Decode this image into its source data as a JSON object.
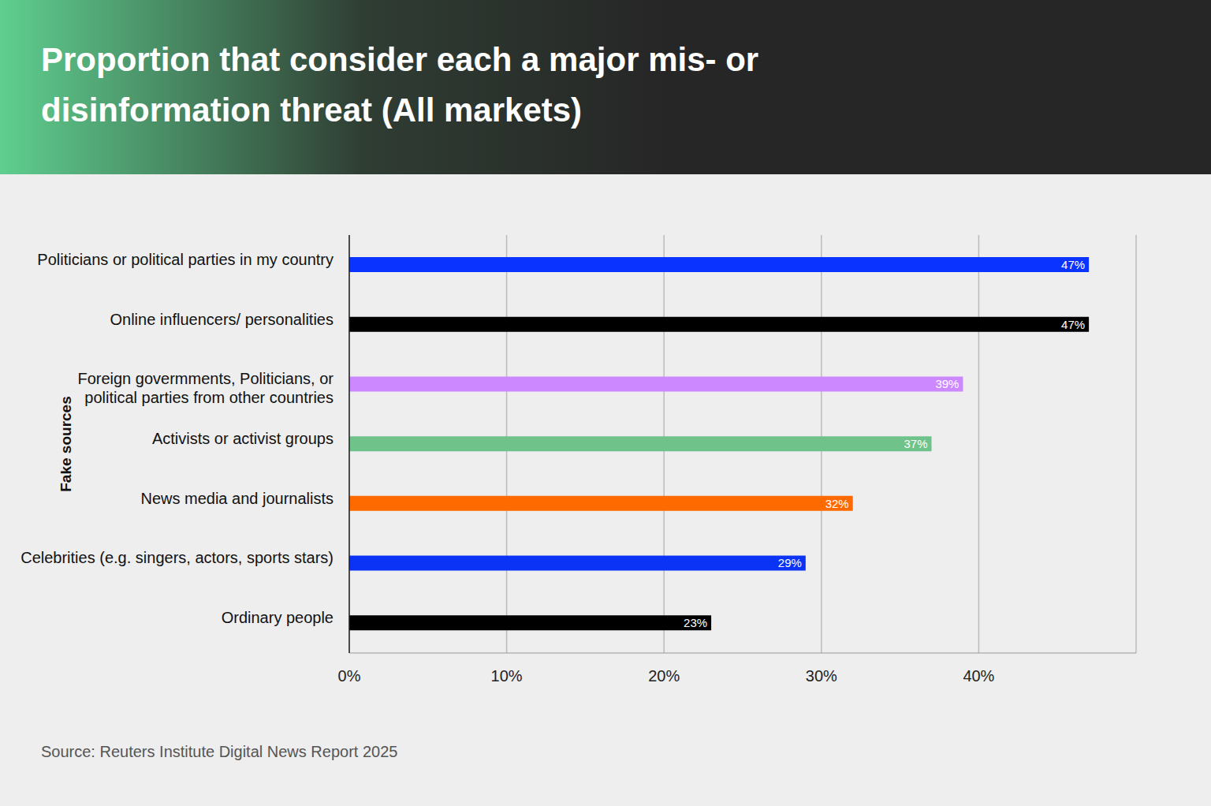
{
  "chart_data": {
    "type": "bar",
    "orientation": "horizontal",
    "title": "Proportion that consider each a major mis- or disinformation threat (All markets)",
    "y_label": "Fake sources",
    "source": "Source: Reuters Institute Digital News Report 2025",
    "categories": [
      "Politicians or political parties in my country",
      "Online influencers/ personalities",
      "Foreign govermments, Politicians, or political parties from other countries",
      "Activists or activist groups",
      "News media and journalists",
      "Celebrities (e.g. singers, actors, sports stars)",
      "Ordinary people"
    ],
    "values": [
      47,
      47,
      39,
      37,
      32,
      29,
      23
    ],
    "value_labels": [
      "47%",
      "47%",
      "39%",
      "37%",
      "32%",
      "29%",
      "23%"
    ],
    "colors": [
      "#0a33ff",
      "#000000",
      "#cc88ff",
      "#6fc38a",
      "#ff6a00",
      "#0a33f5",
      "#000000"
    ],
    "xlim": [
      0,
      50
    ],
    "xticks": [
      {
        "value": 0,
        "label": "0%"
      },
      {
        "value": 10,
        "label": "10%"
      },
      {
        "value": 20,
        "label": "20%"
      },
      {
        "value": 30,
        "label": "30%"
      },
      {
        "value": 40,
        "label": "40%"
      }
    ],
    "grid": true,
    "data_labels": true
  }
}
